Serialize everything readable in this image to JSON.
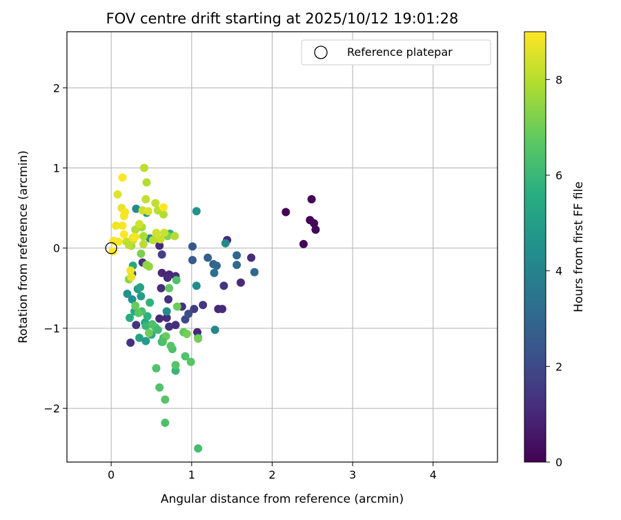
{
  "chart_data": {
    "type": "scatter",
    "title": "FOV centre drift starting at 2025/10/12 19:01:28",
    "xlabel": "Angular distance from reference (arcmin)",
    "ylabel": "Rotation from reference (arcmin)",
    "xlim": [
      -0.55,
      4.8
    ],
    "ylim": [
      -2.67,
      2.7
    ],
    "xticks": [
      0,
      1,
      2,
      3,
      4
    ],
    "yticks": [
      -2,
      -1,
      0,
      1,
      2
    ],
    "grid": true,
    "legend": {
      "position": "top-right",
      "entries": [
        "Reference platepar"
      ]
    },
    "reference_point": {
      "label": "Reference platepar",
      "x": 0,
      "y": 0
    },
    "colorbar": {
      "label": "Hours from first FF file",
      "range": [
        0,
        9
      ],
      "ticks": [
        0,
        2,
        4,
        6,
        8
      ],
      "colormap": "viridis"
    },
    "series": [
      {
        "points": [
          {
            "x": 2.17,
            "y": 0.45,
            "c": 0.1
          },
          {
            "x": 2.49,
            "y": 0.61,
            "c": 0.1
          },
          {
            "x": 2.47,
            "y": 0.35,
            "c": 0.1
          },
          {
            "x": 2.52,
            "y": 0.31,
            "c": 0.15
          },
          {
            "x": 2.54,
            "y": 0.23,
            "c": 0.15
          },
          {
            "x": 2.39,
            "y": 0.05,
            "c": 0.1
          },
          {
            "x": 1.44,
            "y": 0.1,
            "c": 1.0
          },
          {
            "x": 1.74,
            "y": -0.12,
            "c": 1.2
          },
          {
            "x": 1.61,
            "y": -0.43,
            "c": 1.1
          },
          {
            "x": 1.4,
            "y": -0.47,
            "c": 1.4
          },
          {
            "x": 1.33,
            "y": -0.76,
            "c": 1.0
          },
          {
            "x": 1.38,
            "y": -0.76,
            "c": 1.1
          },
          {
            "x": 1.14,
            "y": -0.71,
            "c": 1.5
          },
          {
            "x": 1.03,
            "y": -0.76,
            "c": 1.6
          },
          {
            "x": 0.88,
            "y": -0.73,
            "c": 1.3
          },
          {
            "x": 0.8,
            "y": -0.35,
            "c": 1.2
          },
          {
            "x": 0.72,
            "y": -0.33,
            "c": 1.0
          },
          {
            "x": 0.63,
            "y": -0.31,
            "c": 1.0
          },
          {
            "x": 0.7,
            "y": -0.37,
            "c": 1.1
          },
          {
            "x": 0.62,
            "y": -0.5,
            "c": 1.2
          },
          {
            "x": 0.71,
            "y": -0.64,
            "c": 1.3
          },
          {
            "x": 0.69,
            "y": -0.87,
            "c": 1.2
          },
          {
            "x": 0.6,
            "y": -0.88,
            "c": 1.1
          },
          {
            "x": 0.72,
            "y": -0.98,
            "c": 1.3
          },
          {
            "x": 0.8,
            "y": -0.96,
            "c": 1.2
          },
          {
            "x": 1.07,
            "y": -1.05,
            "c": 1.0
          },
          {
            "x": 0.92,
            "y": -0.89,
            "c": 2.0
          },
          {
            "x": 0.96,
            "y": -0.82,
            "c": 2.2
          },
          {
            "x": 0.24,
            "y": -1.18,
            "c": 1.3
          },
          {
            "x": 0.31,
            "y": -0.96,
            "c": 1.4
          },
          {
            "x": 0.39,
            "y": -0.18,
            "c": 1.3
          },
          {
            "x": 0.6,
            "y": 0.03,
            "c": 1.1
          },
          {
            "x": 0.63,
            "y": -0.08,
            "c": 1.8
          },
          {
            "x": 0.26,
            "y": -0.32,
            "c": 2.0
          },
          {
            "x": 1.01,
            "y": 0.02,
            "c": 2.5
          },
          {
            "x": 1.01,
            "y": -0.15,
            "c": 2.6
          },
          {
            "x": 1.2,
            "y": -0.12,
            "c": 2.8
          },
          {
            "x": 1.27,
            "y": -0.2,
            "c": 2.9
          },
          {
            "x": 1.31,
            "y": -0.22,
            "c": 3.1
          },
          {
            "x": 1.28,
            "y": -0.31,
            "c": 3.3
          },
          {
            "x": 1.56,
            "y": -0.09,
            "c": 3.0
          },
          {
            "x": 1.56,
            "y": -0.21,
            "c": 3.2
          },
          {
            "x": 1.78,
            "y": -0.3,
            "c": 3.1
          },
          {
            "x": 1.42,
            "y": 0.06,
            "c": 4.2
          },
          {
            "x": 1.06,
            "y": -0.47,
            "c": 4.4
          },
          {
            "x": 1.06,
            "y": 0.46,
            "c": 4.6
          },
          {
            "x": 1.29,
            "y": -1.02,
            "c": 4.1
          },
          {
            "x": 1.08,
            "y": -1.12,
            "c": 4.0
          },
          {
            "x": 0.31,
            "y": 0.49,
            "c": 4.3
          },
          {
            "x": 0.44,
            "y": 0.44,
            "c": 4.6
          },
          {
            "x": 0.48,
            "y": 0.12,
            "c": 4.4
          },
          {
            "x": 0.69,
            "y": -0.79,
            "c": 4.4
          },
          {
            "x": 0.2,
            "y": -0.57,
            "c": 4.6
          },
          {
            "x": 0.26,
            "y": -0.64,
            "c": 4.5
          },
          {
            "x": 0.33,
            "y": -0.51,
            "c": 4.8
          },
          {
            "x": 0.37,
            "y": -0.6,
            "c": 5.0
          },
          {
            "x": 0.42,
            "y": -0.93,
            "c": 5.2
          },
          {
            "x": 0.29,
            "y": -0.79,
            "c": 5.4
          },
          {
            "x": 0.23,
            "y": -0.87,
            "c": 5.6
          },
          {
            "x": 0.35,
            "y": -1.12,
            "c": 5.2
          },
          {
            "x": 0.43,
            "y": -1.16,
            "c": 5.0
          },
          {
            "x": 0.5,
            "y": -1.08,
            "c": 5.5
          },
          {
            "x": 0.48,
            "y": -0.68,
            "c": 5.8
          },
          {
            "x": 0.63,
            "y": -1.17,
            "c": 5.6
          },
          {
            "x": 0.65,
            "y": -1.12,
            "c": 6.2
          },
          {
            "x": 0.45,
            "y": -0.85,
            "c": 5.8
          },
          {
            "x": 0.36,
            "y": -0.49,
            "c": 5.3
          },
          {
            "x": 0.27,
            "y": -0.22,
            "c": 5.4
          },
          {
            "x": 0.43,
            "y": -0.97,
            "c": 6.0
          },
          {
            "x": 0.38,
            "y": -0.79,
            "c": 6.3
          },
          {
            "x": 0.51,
            "y": -0.95,
            "c": 6.4
          },
          {
            "x": 0.55,
            "y": -0.99,
            "c": 6.5
          },
          {
            "x": 0.58,
            "y": -1.02,
            "c": 6.2
          },
          {
            "x": 0.56,
            "y": -1.5,
            "c": 6.5
          },
          {
            "x": 0.6,
            "y": -1.74,
            "c": 6.5
          },
          {
            "x": 0.67,
            "y": -1.89,
            "c": 6.6
          },
          {
            "x": 0.67,
            "y": -2.18,
            "c": 6.4
          },
          {
            "x": 1.08,
            "y": -2.5,
            "c": 6.3
          },
          {
            "x": 0.99,
            "y": -1.42,
            "c": 6.6
          },
          {
            "x": 0.92,
            "y": -1.35,
            "c": 6.5
          },
          {
            "x": 0.8,
            "y": -1.53,
            "c": 6.0
          },
          {
            "x": 0.8,
            "y": -1.46,
            "c": 6.6
          },
          {
            "x": 0.76,
            "y": -1.26,
            "c": 6.4
          },
          {
            "x": 0.74,
            "y": -1.22,
            "c": 6.6
          },
          {
            "x": 0.68,
            "y": -1.1,
            "c": 6.9
          },
          {
            "x": 0.64,
            "y": -1.17,
            "c": 6.4
          },
          {
            "x": 0.9,
            "y": -1.05,
            "c": 6.8
          },
          {
            "x": 0.94,
            "y": -1.07,
            "c": 7.1
          },
          {
            "x": 1.08,
            "y": -1.13,
            "c": 7.1
          },
          {
            "x": 0.72,
            "y": -0.5,
            "c": 6.8
          },
          {
            "x": 0.81,
            "y": -0.4,
            "c": 6.5
          },
          {
            "x": 0.82,
            "y": -0.73,
            "c": 7.0
          },
          {
            "x": 0.3,
            "y": -0.72,
            "c": 6.9
          },
          {
            "x": 0.34,
            "y": -0.81,
            "c": 6.7
          },
          {
            "x": 0.47,
            "y": -1.06,
            "c": 7.0
          },
          {
            "x": 0.37,
            "y": -0.07,
            "c": 7.2
          },
          {
            "x": 0.22,
            "y": -0.39,
            "c": 7.4
          },
          {
            "x": 0.73,
            "y": 0.18,
            "c": 5.8
          },
          {
            "x": 0.7,
            "y": 0.15,
            "c": 7.3
          },
          {
            "x": 0.47,
            "y": -0.23,
            "c": 7.6
          },
          {
            "x": 0.44,
            "y": -0.21,
            "c": 7.5
          },
          {
            "x": 0.38,
            "y": 0.26,
            "c": 7.8
          },
          {
            "x": 0.3,
            "y": 0.23,
            "c": 8.0
          },
          {
            "x": 0.25,
            "y": 0.03,
            "c": 7.8
          },
          {
            "x": 0.4,
            "y": 0.15,
            "c": 7.9
          },
          {
            "x": 0.4,
            "y": 0.05,
            "c": 8.1
          },
          {
            "x": 0.41,
            "y": 1.0,
            "c": 8.1
          },
          {
            "x": 0.44,
            "y": 0.82,
            "c": 8.0
          },
          {
            "x": 0.43,
            "y": 0.61,
            "c": 8.2
          },
          {
            "x": 0.39,
            "y": 0.47,
            "c": 8.3
          },
          {
            "x": 0.46,
            "y": 0.46,
            "c": 8.5
          },
          {
            "x": 0.55,
            "y": 0.56,
            "c": 8.2
          },
          {
            "x": 0.58,
            "y": 0.47,
            "c": 8.1
          },
          {
            "x": 0.65,
            "y": 0.42,
            "c": 8.0
          },
          {
            "x": 0.61,
            "y": 0.11,
            "c": 8.3
          },
          {
            "x": 0.56,
            "y": 0.19,
            "c": 8.4
          },
          {
            "x": 0.66,
            "y": 0.19,
            "c": 8.3
          },
          {
            "x": 0.79,
            "y": 0.15,
            "c": 8.0
          },
          {
            "x": 0.52,
            "y": 0.1,
            "c": 8.1
          },
          {
            "x": 0.35,
            "y": 0.3,
            "c": 8.4
          },
          {
            "x": 0.19,
            "y": 0.08,
            "c": 8.2
          },
          {
            "x": 0.27,
            "y": 0.1,
            "c": 8.3
          },
          {
            "x": 0.22,
            "y": 0.04,
            "c": 8.1
          },
          {
            "x": 0.25,
            "y": -0.36,
            "c": 8.7
          },
          {
            "x": 0.24,
            "y": -0.28,
            "c": 8.8
          },
          {
            "x": 0.08,
            "y": 0.67,
            "c": 8.6
          },
          {
            "x": 0.13,
            "y": 0.5,
            "c": 8.7
          },
          {
            "x": 0.14,
            "y": 0.88,
            "c": 9.0
          },
          {
            "x": 0.16,
            "y": 0.4,
            "c": 8.9
          },
          {
            "x": 0.17,
            "y": 0.45,
            "c": 8.9
          },
          {
            "x": 0.14,
            "y": 0.28,
            "c": 8.9
          },
          {
            "x": 0.06,
            "y": 0.28,
            "c": 8.8
          },
          {
            "x": 0.16,
            "y": 0.17,
            "c": 9.0
          },
          {
            "x": 0.03,
            "y": 0.09,
            "c": 8.9
          },
          {
            "x": 0.02,
            "y": -0.04,
            "c": 9.0
          },
          {
            "x": 0.09,
            "y": 0.08,
            "c": 8.9
          },
          {
            "x": 0.27,
            "y": 0.13,
            "c": 8.8
          },
          {
            "x": 0.65,
            "y": 0.51,
            "c": 9.0
          },
          {
            "x": 0.3,
            "y": 0.14,
            "c": 8.9
          }
        ]
      }
    ]
  }
}
